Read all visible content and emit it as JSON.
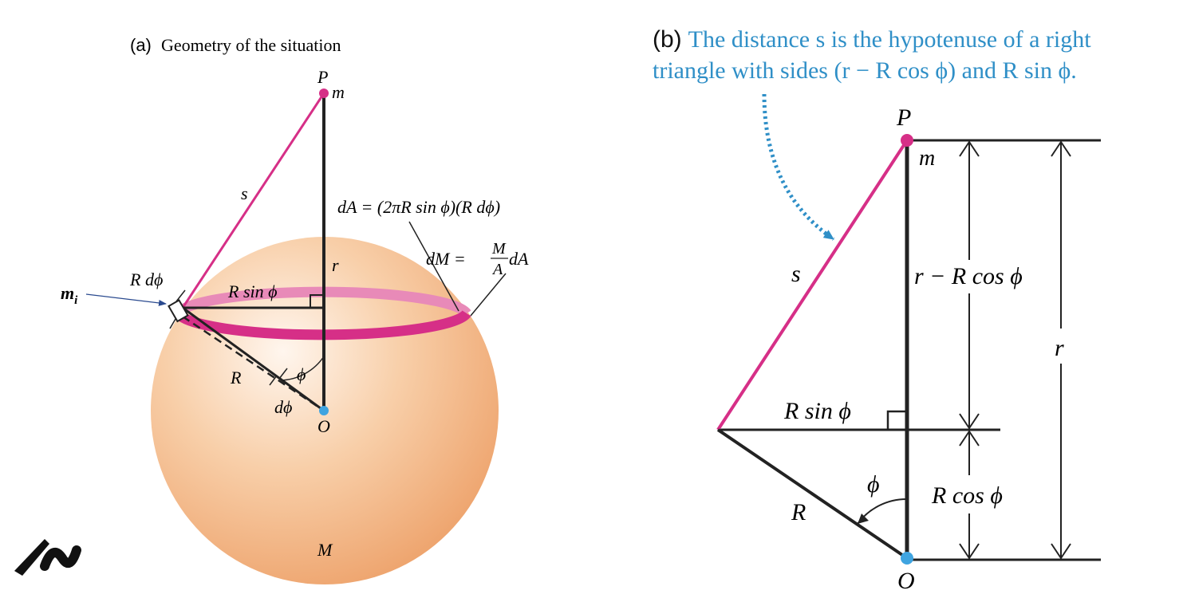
{
  "panel_a": {
    "tag": "(a)",
    "caption": "Geometry of the situation",
    "labels": {
      "P": "P",
      "m": "m",
      "s": "s",
      "r": "r",
      "R": "R",
      "phi": "ϕ",
      "dphi": "dϕ",
      "O": "O",
      "M": "M",
      "R_dphi": "R dϕ",
      "R_sin_phi": "R sin ϕ",
      "m_i_base": "m",
      "m_i_sub": "i",
      "dA_eq": "dA = (2πR sin ϕ)(R dϕ)",
      "dM_lhs": "dM = ",
      "dM_num": "M",
      "dM_den": "A",
      "dM_tail": "dA"
    }
  },
  "panel_b": {
    "tag": "(b)",
    "caption_line1": "The distance s is the hypotenuse of a right",
    "caption_line2": "triangle with sides (r − R cos ϕ) and R sin ϕ.",
    "labels": {
      "P": "P",
      "m": "m",
      "s": "s",
      "r_minus": "r − R cos ϕ",
      "r": "r",
      "R_sin_phi": "R sin ϕ",
      "phi": "ϕ",
      "R_cos_phi": "R cos ϕ",
      "R": "R",
      "O": "O"
    }
  },
  "colors": {
    "magenta": "#d62f87",
    "ring_light": "#e88ab8",
    "caption_blue": "#2f8fc7",
    "dot_blue": "#3fa4e0",
    "sphere_light": "#fdeee0",
    "sphere_dark": "#eea06a",
    "arrow_navy": "#2a4a8f"
  },
  "logo": {
    "icon": "brand-logo-mark"
  }
}
